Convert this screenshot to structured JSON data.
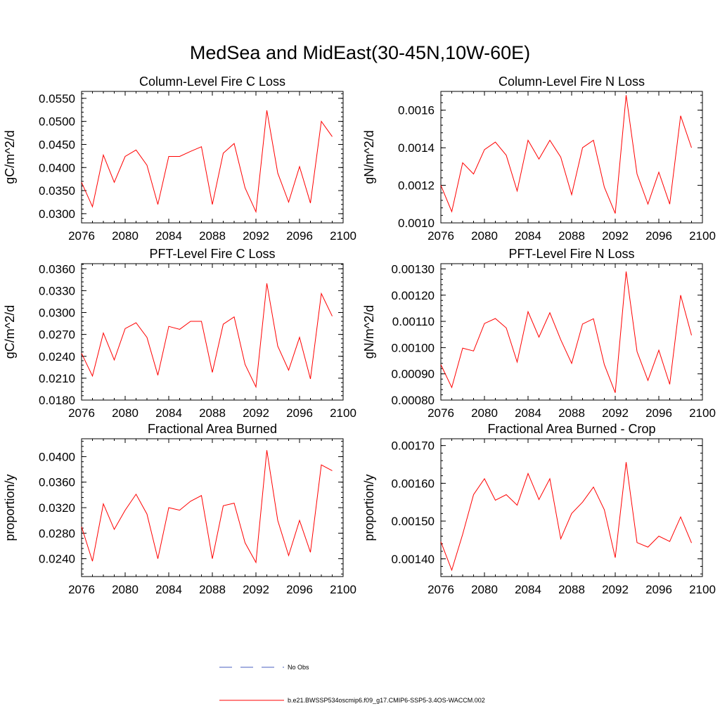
{
  "figure_title": "MedSea and MidEast(30-45N,10W-60E)",
  "legend": [
    {
      "label": "No Obs",
      "color": "#4a5fc1",
      "dash": "dashed"
    },
    {
      "label": "b.e21.BWSSP534oscmip6.f09_g17.CMIP6-SSP5-3.4OS-WACCM.002",
      "color": "#ff0000",
      "dash": "solid"
    }
  ],
  "colors": {
    "series": "#ff0000",
    "obs": "#4a5fc1",
    "axis": "#000000"
  },
  "chart_data": [
    {
      "type": "line",
      "title": "Column-Level Fire C Loss",
      "ylabel": "gC/m^2/d",
      "xlim": [
        2076,
        2100
      ],
      "xticks": [
        "2076",
        "2080",
        "2084",
        "2088",
        "2092",
        "2096",
        "2100"
      ],
      "ylim": [
        0.028,
        0.0565
      ],
      "yticks": [
        "0.0300",
        "0.0350",
        "0.0400",
        "0.0450",
        "0.0500",
        "0.0550"
      ],
      "x": [
        2076,
        2077,
        2078,
        2079,
        2080,
        2081,
        2082,
        2083,
        2084,
        2085,
        2086,
        2087,
        2088,
        2089,
        2090,
        2091,
        2092,
        2093,
        2094,
        2095,
        2096,
        2097,
        2098,
        2099
      ],
      "series": [
        {
          "values": [
            0.0368,
            0.0315,
            0.0427,
            0.0368,
            0.0424,
            0.0438,
            0.0405,
            0.032,
            0.0424,
            0.0424,
            0.0435,
            0.0445,
            0.032,
            0.0431,
            0.0452,
            0.0356,
            0.0304,
            0.0524,
            0.0388,
            0.0325,
            0.0402,
            0.0323,
            0.05,
            0.0467
          ]
        }
      ]
    },
    {
      "type": "line",
      "title": "Column-Level Fire N Loss",
      "ylabel": "gN/m^2/d",
      "xlim": [
        2076,
        2100
      ],
      "xticks": [
        "2076",
        "2080",
        "2084",
        "2088",
        "2092",
        "2096",
        "2100"
      ],
      "ylim": [
        0.001,
        0.0017
      ],
      "yticks": [
        "0.0010",
        "0.0012",
        "0.0014",
        "0.0016"
      ],
      "x": [
        2076,
        2077,
        2078,
        2079,
        2080,
        2081,
        2082,
        2083,
        2084,
        2085,
        2086,
        2087,
        2088,
        2089,
        2090,
        2091,
        2092,
        2093,
        2094,
        2095,
        2096,
        2097,
        2098,
        2099
      ],
      "series": [
        {
          "values": [
            0.0012,
            0.00106,
            0.00132,
            0.00126,
            0.00139,
            0.00143,
            0.00136,
            0.00117,
            0.00144,
            0.00134,
            0.00144,
            0.00135,
            0.00115,
            0.0014,
            0.00144,
            0.00119,
            0.00105,
            0.00168,
            0.00126,
            0.0011,
            0.00127,
            0.0011,
            0.00157,
            0.0014
          ]
        }
      ]
    },
    {
      "type": "line",
      "title": "PFT-Level Fire C Loss",
      "ylabel": "gC/m^2/d",
      "xlim": [
        2076,
        2100
      ],
      "xticks": [
        "2076",
        "2080",
        "2084",
        "2088",
        "2092",
        "2096",
        "2100"
      ],
      "ylim": [
        0.018,
        0.0367
      ],
      "yticks": [
        "0.0180",
        "0.0210",
        "0.0240",
        "0.0270",
        "0.0300",
        "0.0330",
        "0.0360"
      ],
      "x": [
        2076,
        2077,
        2078,
        2079,
        2080,
        2081,
        2082,
        2083,
        2084,
        2085,
        2086,
        2087,
        2088,
        2089,
        2090,
        2091,
        2092,
        2093,
        2094,
        2095,
        2096,
        2097,
        2098,
        2099
      ],
      "series": [
        {
          "values": [
            0.0244,
            0.0213,
            0.0272,
            0.0235,
            0.0278,
            0.0286,
            0.0266,
            0.0214,
            0.0281,
            0.0277,
            0.0288,
            0.0288,
            0.0218,
            0.0284,
            0.0294,
            0.0229,
            0.0198,
            0.034,
            0.0254,
            0.0221,
            0.0266,
            0.0209,
            0.0326,
            0.0295
          ]
        }
      ]
    },
    {
      "type": "line",
      "title": "PFT-Level Fire N Loss",
      "ylabel": "gN/m^2/d",
      "xlim": [
        2076,
        2100
      ],
      "xticks": [
        "2076",
        "2080",
        "2084",
        "2088",
        "2092",
        "2096",
        "2100"
      ],
      "ylim": [
        0.0008,
        0.00132
      ],
      "yticks": [
        "0.00080",
        "0.00090",
        "0.00100",
        "0.00110",
        "0.00120",
        "0.00130"
      ],
      "x": [
        2076,
        2077,
        2078,
        2079,
        2080,
        2081,
        2082,
        2083,
        2084,
        2085,
        2086,
        2087,
        2088,
        2089,
        2090,
        2091,
        2092,
        2093,
        2094,
        2095,
        2096,
        2097,
        2098,
        2099
      ],
      "series": [
        {
          "values": [
            0.000935,
            0.000848,
            0.000998,
            0.000987,
            0.001092,
            0.001111,
            0.001075,
            0.000945,
            0.001137,
            0.00104,
            0.001133,
            0.00103,
            0.00094,
            0.00109,
            0.00111,
            0.000935,
            0.000828,
            0.00129,
            0.000985,
            0.000875,
            0.00099,
            0.00086,
            0.0012,
            0.001047
          ]
        }
      ]
    },
    {
      "type": "line",
      "title": "Fractional Area Burned",
      "ylabel": "proportion/y",
      "xlim": [
        2076,
        2100
      ],
      "xticks": [
        "2076",
        "2080",
        "2084",
        "2088",
        "2092",
        "2096",
        "2100"
      ],
      "ylim": [
        0.0212,
        0.0428
      ],
      "yticks": [
        "0.0240",
        "0.0280",
        "0.0320",
        "0.0360",
        "0.0400"
      ],
      "x": [
        2076,
        2077,
        2078,
        2079,
        2080,
        2081,
        2082,
        2083,
        2084,
        2085,
        2086,
        2087,
        2088,
        2089,
        2090,
        2091,
        2092,
        2093,
        2094,
        2095,
        2096,
        2097,
        2098,
        2099
      ],
      "series": [
        {
          "values": [
            0.029,
            0.0236,
            0.0326,
            0.0286,
            0.0316,
            0.0341,
            0.031,
            0.024,
            0.032,
            0.0316,
            0.033,
            0.0339,
            0.024,
            0.0323,
            0.0327,
            0.0265,
            0.0234,
            0.041,
            0.03,
            0.0245,
            0.03,
            0.025,
            0.0387,
            0.0378
          ]
        }
      ]
    },
    {
      "type": "line",
      "title": "Fractional Area Burned - Crop",
      "ylabel": "proportion/y",
      "xlim": [
        2076,
        2100
      ],
      "xticks": [
        "2076",
        "2080",
        "2084",
        "2088",
        "2092",
        "2096",
        "2100"
      ],
      "ylim": [
        0.001353,
        0.001718
      ],
      "yticks": [
        "0.00140",
        "0.00150",
        "0.00160",
        "0.00170"
      ],
      "x": [
        2076,
        2077,
        2078,
        2079,
        2080,
        2081,
        2082,
        2083,
        2084,
        2085,
        2086,
        2087,
        2088,
        2089,
        2090,
        2091,
        2092,
        2093,
        2094,
        2095,
        2096,
        2097,
        2098,
        2099
      ],
      "series": [
        {
          "values": [
            0.001445,
            0.00137,
            0.001465,
            0.00157,
            0.001612,
            0.001555,
            0.00157,
            0.001542,
            0.001626,
            0.001557,
            0.001612,
            0.001453,
            0.00152,
            0.00155,
            0.00159,
            0.00153,
            0.001403,
            0.001656,
            0.001443,
            0.001431,
            0.00146,
            0.001446,
            0.001511,
            0.001442
          ]
        }
      ]
    }
  ]
}
